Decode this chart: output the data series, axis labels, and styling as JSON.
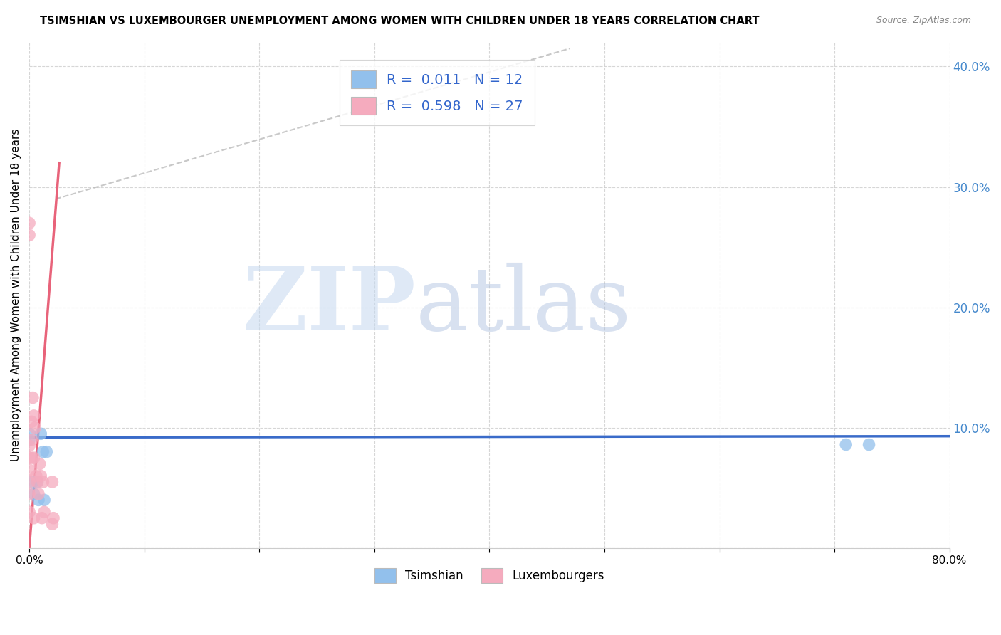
{
  "title": "TSIMSHIAN VS LUXEMBOURGER UNEMPLOYMENT AMONG WOMEN WITH CHILDREN UNDER 18 YEARS CORRELATION CHART",
  "source": "Source: ZipAtlas.com",
  "ylabel": "Unemployment Among Women with Children Under 18 years",
  "xlim": [
    0.0,
    0.8
  ],
  "ylim": [
    0.0,
    0.42
  ],
  "xticks": [
    0.0,
    0.1,
    0.2,
    0.3,
    0.4,
    0.5,
    0.6,
    0.7,
    0.8
  ],
  "yticks": [
    0.0,
    0.1,
    0.2,
    0.3,
    0.4
  ],
  "legend_labels": [
    "Tsimshian",
    "Luxembourgers"
  ],
  "tsimshian_R": "0.011",
  "tsimshian_N": "12",
  "luxembourger_R": "0.598",
  "luxembourger_N": "27",
  "blue_color": "#92C0EC",
  "pink_color": "#F5ABBE",
  "blue_line_color": "#3A6BC9",
  "pink_line_color": "#E8637A",
  "watermark_zip": "ZIP",
  "watermark_atlas": "atlas",
  "background_color": "#ffffff",
  "tsimshian_x": [
    0.0,
    0.0,
    0.003,
    0.004,
    0.007,
    0.008,
    0.01,
    0.012,
    0.013,
    0.015,
    0.71,
    0.73
  ],
  "tsimshian_y": [
    0.095,
    0.09,
    0.055,
    0.045,
    0.055,
    0.04,
    0.095,
    0.08,
    0.04,
    0.08,
    0.086,
    0.086
  ],
  "luxembourger_x": [
    0.0,
    0.0,
    0.0,
    0.0,
    0.0,
    0.0,
    0.0,
    0.0,
    0.002,
    0.002,
    0.002,
    0.003,
    0.004,
    0.004,
    0.004,
    0.005,
    0.006,
    0.007,
    0.008,
    0.009,
    0.01,
    0.011,
    0.012,
    0.013,
    0.02,
    0.02,
    0.021
  ],
  "luxembourger_y": [
    0.27,
    0.26,
    0.085,
    0.075,
    0.065,
    0.055,
    0.045,
    0.03,
    0.105,
    0.09,
    0.075,
    0.125,
    0.11,
    0.075,
    0.025,
    0.1,
    0.06,
    0.055,
    0.045,
    0.07,
    0.06,
    0.025,
    0.055,
    0.03,
    0.055,
    0.02,
    0.025
  ],
  "tsimshian_line_x": [
    0.0,
    0.8
  ],
  "tsimshian_line_y": [
    0.092,
    0.093
  ],
  "lux_line_x": [
    0.0,
    0.026
  ],
  "lux_line_y": [
    0.0,
    0.32
  ],
  "dashed_line_x": [
    0.023,
    0.47
  ],
  "dashed_line_y": [
    0.29,
    0.415
  ]
}
